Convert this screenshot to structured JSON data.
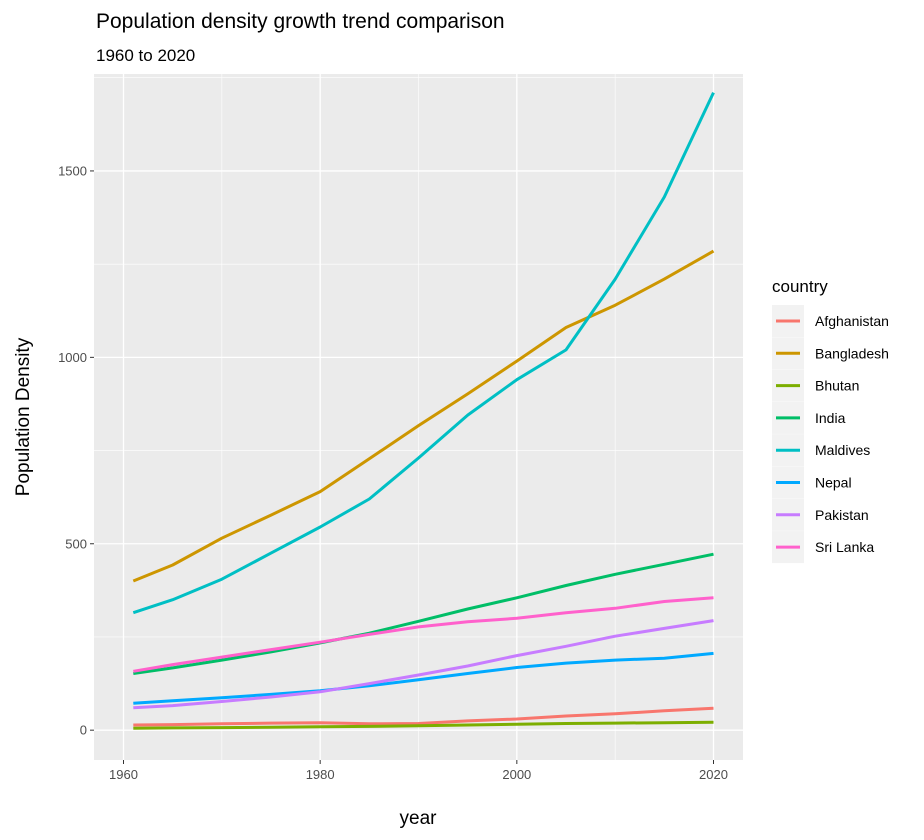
{
  "chart_data": {
    "type": "line",
    "title": "Population density growth trend comparison",
    "subtitle": "1960 to 2020",
    "xlabel": "year",
    "ylabel": "Population Density",
    "xlim": [
      1957,
      2023
    ],
    "ylim": [
      -80,
      1760
    ],
    "x_ticks": [
      1960,
      1980,
      2000,
      2020
    ],
    "x_tick_labels": [
      "1960",
      "1980",
      "2000",
      "2020"
    ],
    "y_ticks": [
      0,
      500,
      1000,
      1500
    ],
    "y_tick_labels": [
      "0",
      "500",
      "1000",
      "1500"
    ],
    "grid": true,
    "legend_title": "country",
    "legend_position": "right",
    "x": [
      1961,
      1965,
      1970,
      1975,
      1980,
      1985,
      1990,
      1995,
      2000,
      2005,
      2010,
      2015,
      2020
    ],
    "series": [
      {
        "name": "Afghanistan",
        "color": "#F8766D",
        "values": [
          14,
          15,
          17,
          19,
          20,
          17,
          18,
          25,
          30,
          38,
          44,
          52,
          59
        ]
      },
      {
        "name": "Bangladesh",
        "color": "#CD9600",
        "values": [
          400,
          443,
          515,
          577,
          640,
          728,
          817,
          902,
          990,
          1080,
          1140,
          1210,
          1285
        ]
      },
      {
        "name": "Bhutan",
        "color": "#7CAE00",
        "values": [
          5,
          6,
          7,
          8,
          9,
          10,
          12,
          14,
          16,
          18,
          19,
          20,
          21
        ]
      },
      {
        "name": "India",
        "color": "#00BE67",
        "values": [
          152,
          167,
          188,
          210,
          234,
          260,
          292,
          325,
          355,
          388,
          418,
          445,
          472
        ]
      },
      {
        "name": "Maldives",
        "color": "#00BFC4",
        "values": [
          315,
          350,
          405,
          475,
          545,
          620,
          730,
          845,
          940,
          1020,
          1210,
          1430,
          1710
        ]
      },
      {
        "name": "Nepal",
        "color": "#00A9FF",
        "values": [
          72,
          79,
          87,
          96,
          106,
          119,
          135,
          152,
          168,
          180,
          188,
          193,
          206
        ]
      },
      {
        "name": "Pakistan",
        "color": "#C77CFF",
        "values": [
          60,
          66,
          77,
          89,
          103,
          125,
          148,
          172,
          200,
          225,
          252,
          273,
          294
        ]
      },
      {
        "name": "Sri Lanka",
        "color": "#FF61CC",
        "values": [
          158,
          176,
          196,
          216,
          236,
          257,
          277,
          291,
          300,
          315,
          327,
          345,
          355
        ]
      }
    ]
  }
}
